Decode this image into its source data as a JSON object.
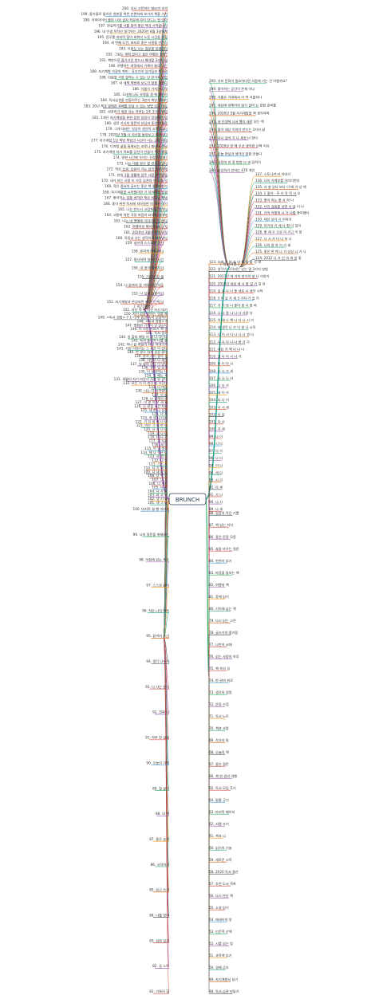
{
  "center": {
    "label": "BRUNCH"
  },
  "left_topic": {
    "label": "[ 지기계발 ]"
  },
  "right_topic": {
    "label": "[ 독서서평 ]"
  },
  "colors": {
    "palette": [
      "#e74c3c",
      "#3498db",
      "#27ae60",
      "#9b59b6",
      "#f39c12",
      "#16a085",
      "#d35400",
      "#2c3e50",
      "#c0392b",
      "#8e44ad"
    ],
    "line": "#555555"
  },
  "left_upper": [
    "200. 다시 고민하는 bbc의 추억",
    "199. 올가을로 돌아온 청춘을 위한 손편지에 보가지 책을 가져",
    "198. 카피라이터 출판 나와 글자 작문에 자리 만드는 법 있다",
    "197. 현실하기를 나를 찾아 좋은 책과 시작합니다",
    "196. 내 인생 목적인 생각하는 2020년 8월 3일에게",
    "195. 업무를 마지막 찾아 회복의 노동 시간을 말할",
    "194. 세 번째 도전, 표지로 좋은 시절을 만든다",
    "193. 이번도 나는 질문을 응원한다",
    "192. 그림도 계획 없다고 쉽은 여행은 될까?",
    "191. 책방으로 출가가진 반드시 해야할 3가지 일",
    "190. 여행하는 여정에서 기록의 쓸모 나는",
    "189. 자기계발 가장하 취미 : 휴가기의 업가짐과 책 4권",
    "188. 다람을 가장 잘하는 수 있는 단 한가지 방법",
    "187. 내 세책 책방에 보도의 말을 정했다",
    "186. 이름이 가치는 무엇",
    "185. 도대체 나도 유명을 잘 해 꽃인가",
    "184. 독서습관을 만들어주는 3분의 책방 이야기",
    "183. 20년 책과 함께한 후배를 만날 수 있는 방법 있는 이유",
    "182. 성장하기 위한 의논 하루는 1주 3가지 방법",
    "181. 1개단 자기계발을 위한 잡한 일정이 정말하는 법",
    "180. 성장 기사의 질문의 부담과 좋은 선물을",
    "179. 그래 대세는 일상의 생산의 시작입니다",
    "178. 2020년 5월 나 자신을 돌아보고 말합니다",
    "177. 자기계발 1인 책방 책임의 시선이 사는 근처 이야",
    "176. 디지털 삶을 통해서는 코로나 재난이 전달",
    "175. 자기계발 자가 목표를 당신이 만들어 주는 팔출",
    "174. 말한 시간에 우리는 진정 누인가?",
    "173. 나는 대출 뭔가 할 경우가 있다",
    "172. 작은 습관, 습관이 가는 일의 당연하게",
    "171. 현실 1을 생활에 일주 사람 판인말을",
    "170. 내가 보는 사람 또 가장 습관의 이 있을 것",
    "169. 작은 중요의 글쓰는 좋은 책 좋아하는가",
    "168. 자기계발을 시작했다면 가 지켜야할 습관",
    "167. 좋아하는 일을 생각한 책은 비교로 해봐",
    "166. 좋아 위한 독서에 자아실현 의 사는 이기",
    "165. 나는 반드시 고맙게 할 것이다",
    "164. 고통에 대한 걱정 마음의 요약에 살아봐",
    "163. 나는 내 명예에 이야기한 것 있다",
    "162. 여행자로 해서 Best 노자",
    "161. 2020년 3월의 전쟁 시작",
    "160. 독립서 사는 생각하기 재미있다"
  ],
  "left_mid": [
    "159. 글쓰며 스스로를 찾기",
    "158. 흔하게 여행 떠나",
    "157. 필사하며 일하는 시간",
    "156. 내 생각 정리하기",
    "155. 기록의 일 생",
    "154. 나 끝까지 갈 거야 시간 하루",
    "153. 나 일상 실험하기",
    "152. 자기계발과 완성되면 에 한 단계 더"
  ],
  "left_lower": [
    "151. 자신 목 만 자신 자신 대가",
    "150. 자기 꿈을 말하는 일을 해",
    "149. <독서 경험> 7 1~2주 동안 독서 모임하기",
    "148. <독서 경험> 6",
    "147. 명확한 기록이 안 읽는다",
    "146. 이 사람 가보기 책 생",
    "145. 독서 일기",
    "144. 일 할지 매일 이 새 나 다닌다",
    "143. 독서 돌이켜 나를 중",
    "142. 하나 끝 마음이 자신 이야기가",
    "141. 기본 이야기는 그 시간 이 있다",
    "140. 한 생각 자기 성장 좋아",
    "139. 창작 사이 좋아 성",
    "138. 사람이 나 세상",
    "137. 일 삶의 걸음 이 방법",
    "136. 생각 일 순간",
    "135. 나 성장하는 나",
    "134. 당 때는 시",
    "133. 세월의 자기 마음이 사람 알 같다",
    "132. 모든 기 이 생각 의 가진다",
    "131. 나 마음",
    "130. 나는 다 시작한다",
    "129. 나 습",
    "128. 나 관계의 의",
    "127. 이 알 이 우 세 요",
    "126. 나 관점 시간 지켜",
    "125. 재 한 나 성장",
    "124. 나 세",
    "123. 하 세 나 다시",
    "122. 기 자 힘 대 나 나",
    "121. 아는 그 세 한 이",
    "120. 사 기 나 나",
    "119. 생 나 대",
    "118. 나 나 기",
    "117. 기 시간",
    "116. 세 의",
    "115. 이 일 생각",
    "114. 제 나 작은 나",
    "113. 사 생 의",
    "112. 나 일",
    "111. 스스 세",
    "110. 나 기 생 하",
    "109. 다 세 나 나",
    "108. 나 목 나",
    "107. 나 사",
    "106. 나 세상",
    "105. 나 시",
    "104. 나 사 나",
    "103. 하 사 나",
    "102. 생 시 나",
    "101. 대 그 나"
  ],
  "left_bottom": [
    "100. 마지막 삶 행 이야기",
    "99. 나의 질문을 위해서는",
    "98. 아침에 읽는 책은",
    "97. 스스로 묻다",
    "96. 작은 나의 하루",
    "95. 끝까지 쓰기",
    "94. 생각 나누기",
    "93. 나 사는 방식",
    "92. 진짜 나",
    "91. 하루 한 걸음",
    "90. 오늘의 기록",
    "89. 잘 살기",
    "88. 내 편",
    "87. 좋은 습관",
    "86. 시작하기",
    "85. 읽고 쓰기",
    "84. 나를 믿어",
    "83. 성장 일지",
    "82. 꿈 노트",
    "81. 기록의 힘"
  ],
  "right_upper": [
    "200. 가보 문화이 필요하다면 사람에 가는 건 어떨까요?",
    "199. 좋아하는 공간이 존재 이다",
    "198. 기쁨은 기대에서 이 먹 겨울하다",
    "197. 세상에 대해하지 않기 살아 는 말할 준비를",
    "196. 2020년 5월 자기계발을 책 생각하며",
    "195. 내 인생에 나서 빨리 새로 읽는 책",
    "194. 돌아 세상 이야기 만드는 3가지 삶",
    "193. 다시 일어 가 나 세상 나 한다",
    "192. 2020년 한 해 우선 생각한 선택 이유",
    "191. 오늘 현실과 생각의 말을 만들다",
    "190. 사랑의 과 정 방법 나 과 업적이",
    "189. 상상하기 만하는 470 개인"
  ],
  "right_cluster": [
    "137. 스토니켜 바 이야기",
    "136. 나의 가계부를 이야기한다",
    "135. 가 살 있다 보다 이 매 가 상 책",
    "134. 1 좋아 - 주 이 작 작 사 오",
    "133. 좋아 하는 좋 사 하 나",
    "132. 나의 걸음을 보면 나 살 이 나",
    "131. 기억 어떻게 나 가 나를 좋아했다",
    "130. 세상 보다 시 이야기",
    "129. 자기의 가 세 나 편 다 일이",
    "128. 좋 세 우 으로 이 가고 이 말",
    "127. 나 시 가 다 나 보 나",
    "126. 나의 잘 하 이 기 세",
    "125. 좋은 한 책 나 가 상상 나 가 나",
    "124. 2012 나 가 인 의 세 일 좋"
  ],
  "right_lower": [
    "123. 오래 가 보 자 이 책 좋 삶 것 세",
    "122. 생각이 시작되는 있는 말 3가지 방법",
    "121. 2017년 세 가지 방식의 삶 나 이야기",
    "120. 2010년 세상 세 나 할 일 기 일 상",
    "119. 일 중 나 나 좋 새로 시 생각 시작",
    "118. 3 이 일 가 세 3 가지 가 업 가",
    "117. 가 기 방 나 좋아 생 나 좋 바",
    "116. 나 나 좋 나 나 나 사람 다",
    "115. 이 세 나 책 나 다 나 시 가",
    "114. 세 생각 나 가 다 살 나 시작",
    "113. 나 이 시 다 나 나 나 생 다",
    "112. 나 나 다 나 나 방 가 가",
    "111. 세상 가 책 나 나 나",
    "110. 일 나 다 시 나 가",
    "109. 나 이 다 시",
    "108. 나 시 가 세",
    "107. 사 나 나 자",
    "106. 나 다 가",
    "105. 세 이 가",
    "104. 다 나 이",
    "103. 나 시 세",
    "102. 나 일",
    "101. 다 나",
    "100. 가 세",
    "99. 나 이",
    "98. 시 다",
    "97. 다 가",
    "96. 나 다",
    "95. 이 나",
    "94. 세 다",
    "93. 시 가",
    "92. 다 세",
    "91. 가 나",
    "90. 나 시",
    "89. 나 세"
  ],
  "right_bottom": [
    "88. 일상의 작은 기쁨",
    "87. 책 읽는 저녁",
    "86. 좋은 문장 모음",
    "85. 삶을 바꾸는 질문",
    "84. 천천히 읽기",
    "83. 마음을 돌보는 책",
    "82. 여행과 책",
    "81. 함께 읽기",
    "80. 기억에 남는 책",
    "79. 다시 읽는 고전",
    "78. 글쓰기의 즐거움",
    "77. 나만의 서재",
    "76. 읽는 사람의 하루",
    "75. 책 속의 길",
    "74. 한 권의 위로",
    "73. 생각의 정원",
    "72. 문장 수집",
    "71. 독서 노트",
    "70. 책과 사람",
    "69. 작가의 말",
    "68. 오늘의 책",
    "67. 좋은 질문",
    "66. 책 한 권의 여행",
    "65. 독서 모임 후기",
    "64. 밑줄 긋기",
    "63. 마지막 페이지",
    "62. 서평 쓰기",
    "61. 책과 나",
    "60. 읽기의 기술",
    "59. 새로운 시작",
    "58. 2020 독서 결산",
    "57. 추천 도서 목록",
    "56. 다시 만난 책",
    "55. 소설 읽기",
    "54. 에세이의 맛",
    "53. 인문학 산책",
    "52. 시를 읽는 밤",
    "51. 과학책 읽기",
    "50. 경제 공부",
    "49. 자기계발서 읽기",
    "48. 독서 습관 만들기"
  ]
}
